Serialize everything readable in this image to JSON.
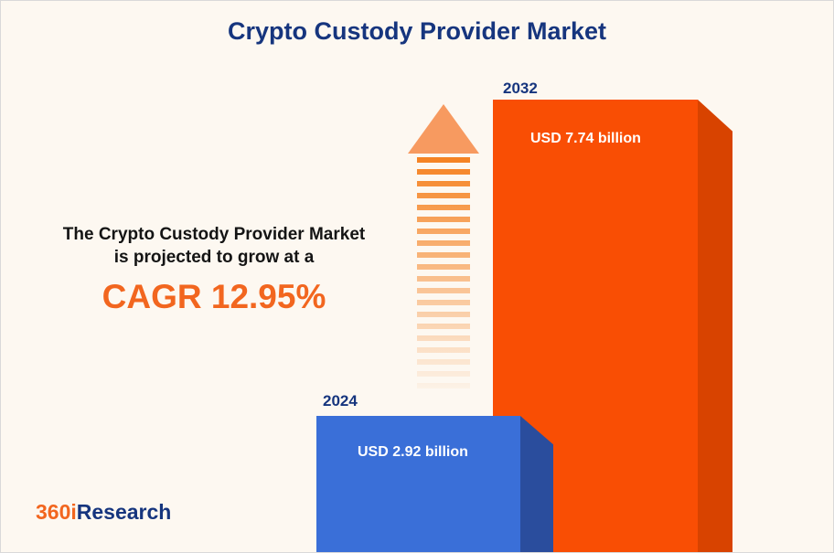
{
  "title": "Crypto Custody Provider Market",
  "annotation": {
    "line1": "The Crypto Custody Provider Market",
    "line2": "is projected to grow at a",
    "cagr": "CAGR 12.95%"
  },
  "bars": [
    {
      "year": "2024",
      "value_label": "USD 2.92 billion",
      "color": "#3a6fd8",
      "side_color": "#2a4d9d"
    },
    {
      "year": "2032",
      "value_label": "USD 7.74 billion",
      "color": "#f94e04",
      "side_color": "#d84300"
    }
  ],
  "logo": {
    "prefix": "360i",
    "suffix": "Research"
  },
  "colors": {
    "background": "#fdf8f1",
    "title_navy": "#16357e",
    "cagr_orange": "#f2661f",
    "arrow_orange": "#f58222",
    "arrow_head": "#f79a60"
  },
  "chart_data": {
    "type": "bar",
    "categories": [
      "2024",
      "2032"
    ],
    "values": [
      2.92,
      7.74
    ],
    "unit": "USD billion",
    "value_labels": [
      "USD 2.92 billion",
      "USD 7.74 billion"
    ],
    "title": "Crypto Custody Provider Market",
    "annotation": "The Crypto Custody Provider Market is projected to grow at a CAGR 12.95%",
    "growth_rate": "CAGR 12.95%",
    "bar_colors": [
      "#3a6fd8",
      "#f94e04"
    ],
    "bar_side_colors": [
      "#2a4d9d",
      "#d84300"
    ],
    "xlabel": "",
    "ylabel": "",
    "legend": false,
    "grid": false
  }
}
